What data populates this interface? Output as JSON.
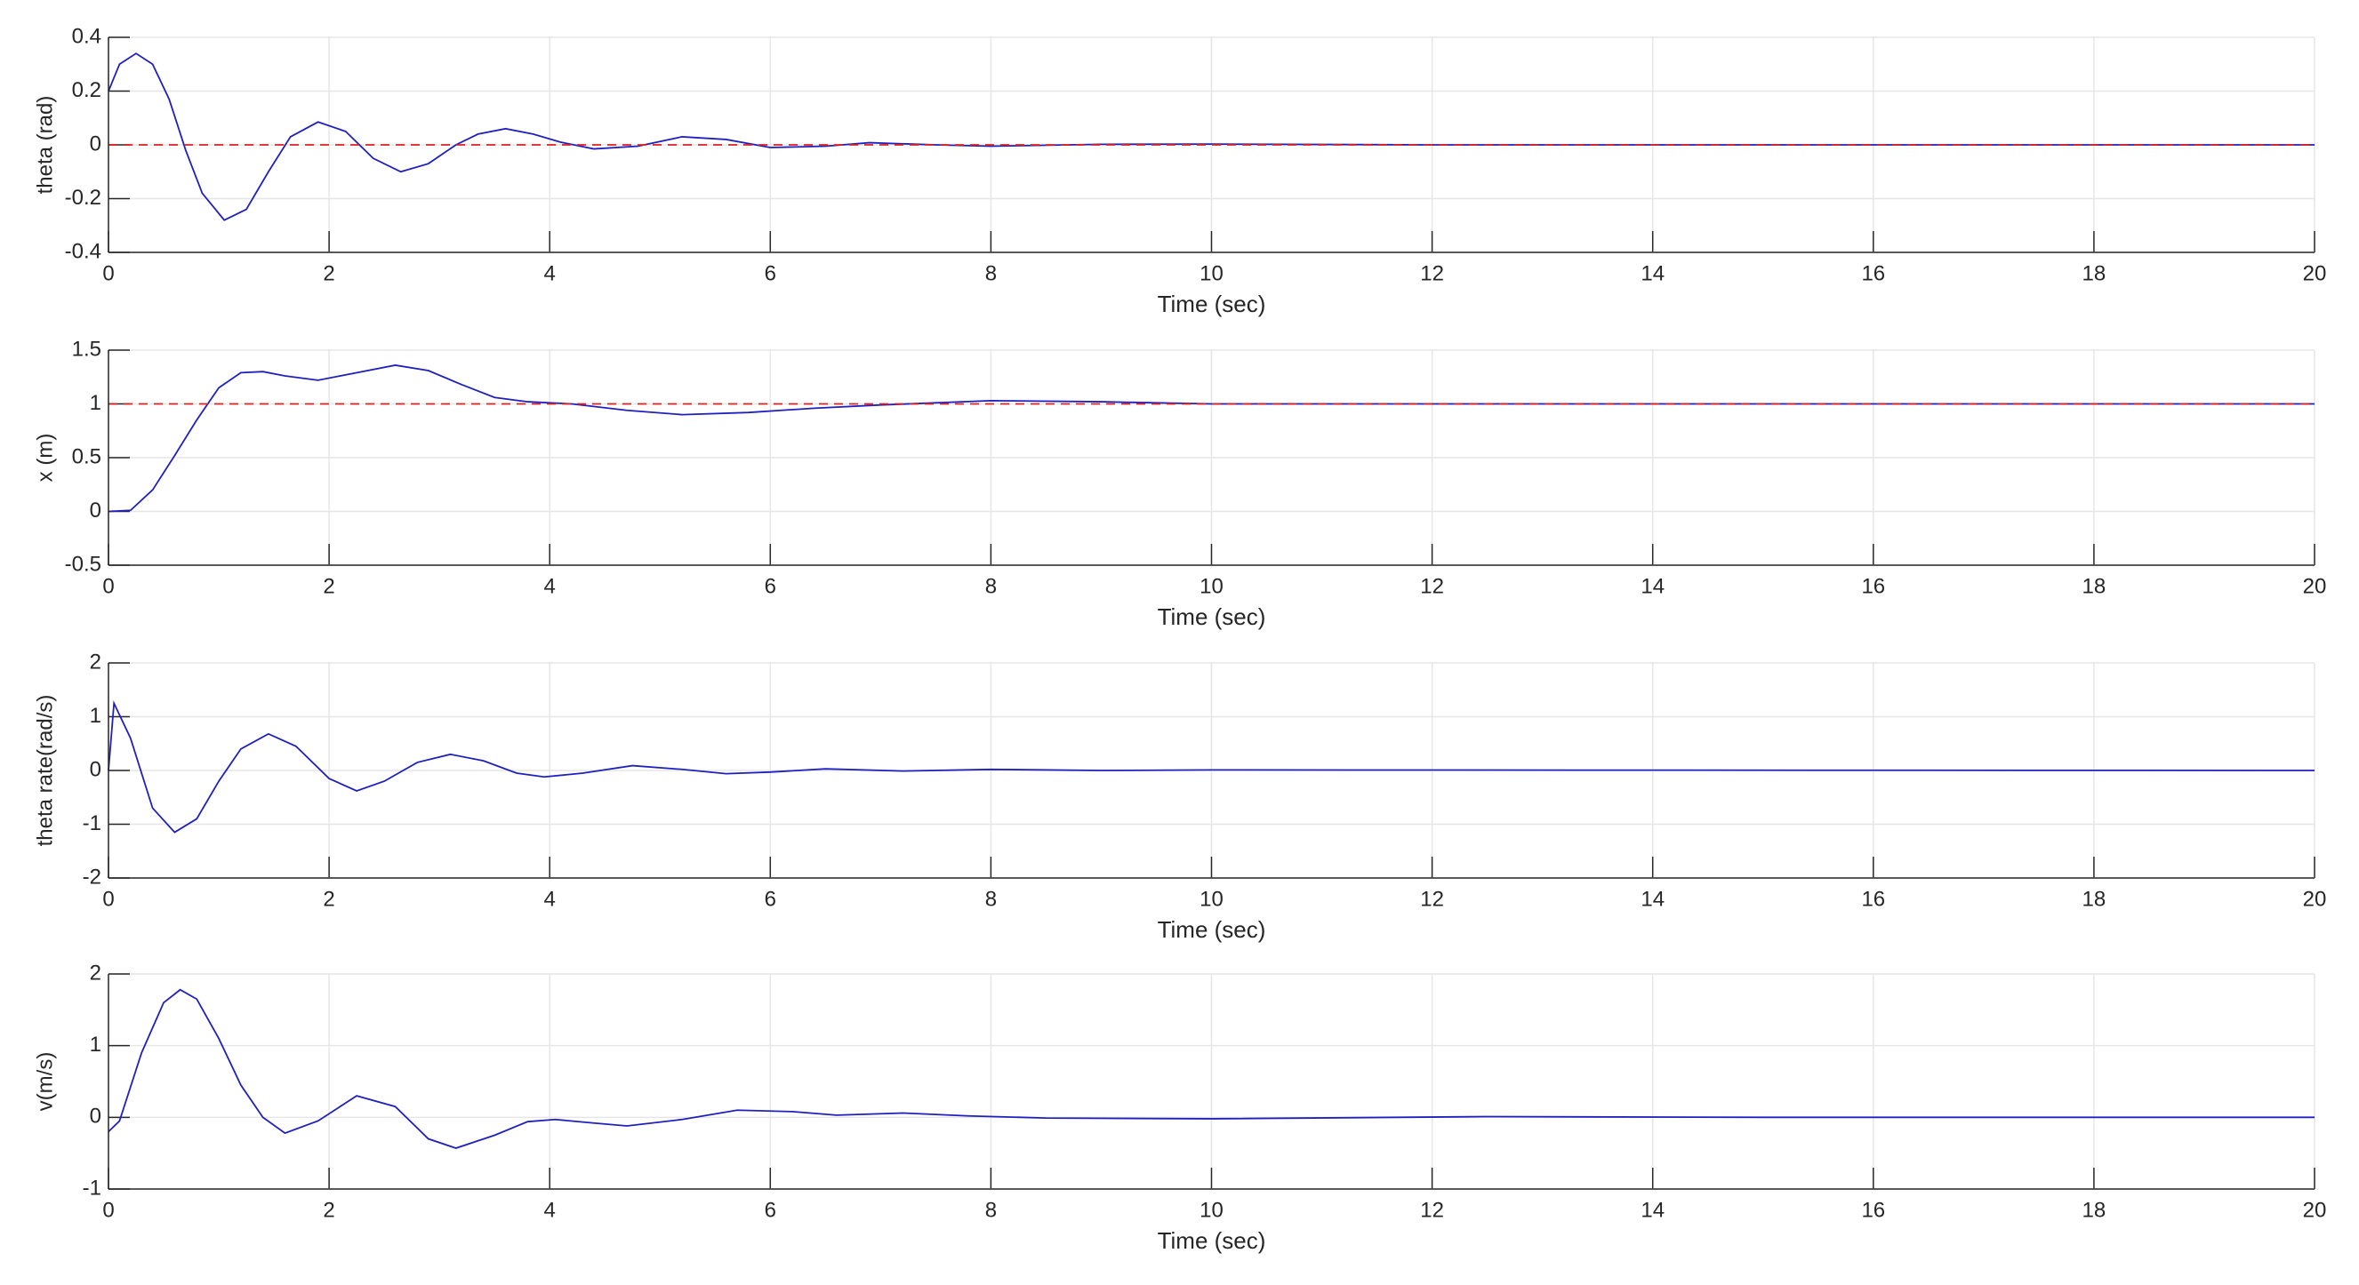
{
  "chart_data": [
    {
      "type": "line",
      "xlabel": "Time (sec)",
      "ylabel": "theta (rad)",
      "xlim": [
        0,
        20
      ],
      "ylim": [
        -0.4,
        0.4
      ],
      "xticks": [
        0,
        2,
        4,
        6,
        8,
        10,
        12,
        14,
        16,
        18,
        20
      ],
      "yticks": [
        -0.4,
        -0.2,
        0,
        0.2,
        0.4
      ],
      "grid": true,
      "series": [
        {
          "color": "#2020c0",
          "x": [
            0,
            0.1,
            0.25,
            0.4,
            0.55,
            0.7,
            0.85,
            1.05,
            1.25,
            1.45,
            1.65,
            1.9,
            2.15,
            2.4,
            2.65,
            2.9,
            3.15,
            3.35,
            3.6,
            3.85,
            4.1,
            4.4,
            4.8,
            5.2,
            5.6,
            6,
            6.5,
            6.9,
            7.5,
            8,
            9,
            10,
            12,
            14,
            16,
            18,
            20
          ],
          "values": [
            0.2,
            0.3,
            0.34,
            0.3,
            0.17,
            -0.02,
            -0.18,
            -0.28,
            -0.24,
            -0.1,
            0.03,
            0.085,
            0.05,
            -0.05,
            -0.1,
            -0.07,
            0,
            0.04,
            0.06,
            0.04,
            0.01,
            -0.015,
            -0.005,
            0.03,
            0.02,
            -0.01,
            -0.005,
            0.008,
            0,
            -0.005,
            0.002,
            0.003,
            0,
            0,
            0,
            0,
            0
          ]
        },
        {
          "color": "#e02020",
          "dash": true,
          "x": [
            0,
            20
          ],
          "values": [
            0,
            0
          ]
        }
      ]
    },
    {
      "type": "line",
      "xlabel": "Time (sec)",
      "ylabel": "x (m)",
      "xlim": [
        0,
        20
      ],
      "ylim": [
        -0.5,
        1.5
      ],
      "xticks": [
        0,
        2,
        4,
        6,
        8,
        10,
        12,
        14,
        16,
        18,
        20
      ],
      "yticks": [
        -0.5,
        0,
        0.5,
        1,
        1.5
      ],
      "grid": true,
      "series": [
        {
          "color": "#2020c0",
          "x": [
            0,
            0.2,
            0.4,
            0.6,
            0.8,
            1.0,
            1.2,
            1.4,
            1.6,
            1.9,
            2.2,
            2.6,
            2.9,
            3.2,
            3.5,
            3.8,
            4.2,
            4.7,
            5.2,
            5.8,
            6.4,
            7,
            8,
            9,
            10,
            12,
            20
          ],
          "values": [
            0,
            0.01,
            0.2,
            0.52,
            0.85,
            1.15,
            1.29,
            1.3,
            1.26,
            1.22,
            1.28,
            1.36,
            1.31,
            1.18,
            1.06,
            1.02,
            1.0,
            0.94,
            0.9,
            0.92,
            0.96,
            0.99,
            1.03,
            1.02,
            1.0,
            1.0,
            1.0
          ]
        },
        {
          "color": "#e02020",
          "dash": true,
          "x": [
            0,
            20
          ],
          "values": [
            1,
            1
          ]
        }
      ]
    },
    {
      "type": "line",
      "xlabel": "Time (sec)",
      "ylabel": "theta rate(rad/s)",
      "xlim": [
        0,
        20
      ],
      "ylim": [
        -2,
        2
      ],
      "xticks": [
        0,
        2,
        4,
        6,
        8,
        10,
        12,
        14,
        16,
        18,
        20
      ],
      "yticks": [
        -2,
        -1,
        0,
        1,
        2
      ],
      "grid": true,
      "series": [
        {
          "color": "#2020c0",
          "x": [
            0,
            0.05,
            0.2,
            0.4,
            0.6,
            0.8,
            1.0,
            1.2,
            1.45,
            1.7,
            2.0,
            2.25,
            2.5,
            2.8,
            3.1,
            3.4,
            3.7,
            3.95,
            4.3,
            4.75,
            5.2,
            5.6,
            6.0,
            6.5,
            7.2,
            8,
            9,
            10,
            20
          ],
          "values": [
            0,
            1.25,
            0.6,
            -0.7,
            -1.15,
            -0.9,
            -0.2,
            0.4,
            0.68,
            0.45,
            -0.15,
            -0.38,
            -0.2,
            0.15,
            0.3,
            0.18,
            -0.05,
            -0.12,
            -0.05,
            0.09,
            0.02,
            -0.06,
            -0.03,
            0.03,
            -0.01,
            0.02,
            0,
            0.01,
            0
          ]
        }
      ]
    },
    {
      "type": "line",
      "xlabel": "Time (sec)",
      "ylabel": "v(m/s)",
      "xlim": [
        0,
        20
      ],
      "ylim": [
        -1,
        2
      ],
      "xticks": [
        0,
        2,
        4,
        6,
        8,
        10,
        12,
        14,
        16,
        18,
        20
      ],
      "yticks": [
        -1,
        0,
        1,
        2
      ],
      "grid": true,
      "series": [
        {
          "color": "#2020c0",
          "x": [
            0,
            0.1,
            0.3,
            0.5,
            0.65,
            0.8,
            1.0,
            1.2,
            1.4,
            1.6,
            1.9,
            2.25,
            2.6,
            2.9,
            3.15,
            3.5,
            3.8,
            4.05,
            4.4,
            4.7,
            5.2,
            5.7,
            6.2,
            6.6,
            7.2,
            7.8,
            8.5,
            10,
            12.5,
            15,
            20
          ],
          "values": [
            -0.2,
            -0.05,
            0.9,
            1.6,
            1.78,
            1.65,
            1.1,
            0.45,
            0.0,
            -0.22,
            -0.05,
            0.3,
            0.15,
            -0.3,
            -0.43,
            -0.25,
            -0.06,
            -0.03,
            -0.08,
            -0.12,
            -0.03,
            0.1,
            0.08,
            0.03,
            0.06,
            0.02,
            -0.01,
            -0.02,
            0.01,
            0,
            0
          ]
        }
      ]
    }
  ]
}
